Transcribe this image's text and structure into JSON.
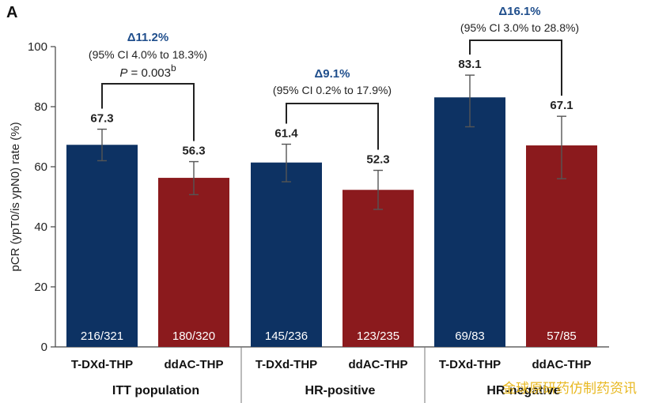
{
  "panel_label": "A",
  "watermark": "金球原研药仿制药资讯",
  "chart_data": {
    "type": "bar",
    "ylabel": "pCR (ypT0/is ypN0) rate (%)",
    "ylim": [
      0,
      100
    ],
    "yticks": [
      "0",
      "20",
      "40",
      "60",
      "80",
      "100"
    ],
    "colors": {
      "T-DXd-THP": "#0d3263",
      "ddAC-THP": "#8b1a1d"
    },
    "groups": [
      {
        "name": "ITT population",
        "bars": [
          {
            "category": "T-DXd-THP",
            "value": 67.3,
            "label": "67.3",
            "ci_low": 62.0,
            "ci_high": 72.5,
            "fraction": "216/321"
          },
          {
            "category": "ddAC-THP",
            "value": 56.3,
            "label": "56.3",
            "ci_low": 50.7,
            "ci_high": 61.7,
            "fraction": "180/320"
          }
        ],
        "delta": "Δ11.2%",
        "ci": "(95% CI 4.0% to 18.3%)",
        "p_value": "P = 0.003",
        "p_italic": "P",
        "p_rest": " = 0.003",
        "p_superscript": "b"
      },
      {
        "name": "HR-positive",
        "bars": [
          {
            "category": "T-DXd-THP",
            "value": 61.4,
            "label": "61.4",
            "ci_low": 55.0,
            "ci_high": 67.5,
            "fraction": "145/236"
          },
          {
            "category": "ddAC-THP",
            "value": 52.3,
            "label": "52.3",
            "ci_low": 45.8,
            "ci_high": 58.8,
            "fraction": "123/235"
          }
        ],
        "delta": "Δ9.1%",
        "ci": "(95% CI 0.2% to 17.9%)"
      },
      {
        "name": "HR-negative",
        "bars": [
          {
            "category": "T-DXd-THP",
            "value": 83.1,
            "label": "83.1",
            "ci_low": 73.3,
            "ci_high": 90.5,
            "fraction": "69/83"
          },
          {
            "category": "ddAC-THP",
            "value": 67.1,
            "label": "67.1",
            "ci_low": 56.0,
            "ci_high": 76.8,
            "fraction": "57/85"
          }
        ],
        "delta": "Δ16.1%",
        "ci": "(95% CI 3.0% to 28.8%)"
      }
    ]
  }
}
